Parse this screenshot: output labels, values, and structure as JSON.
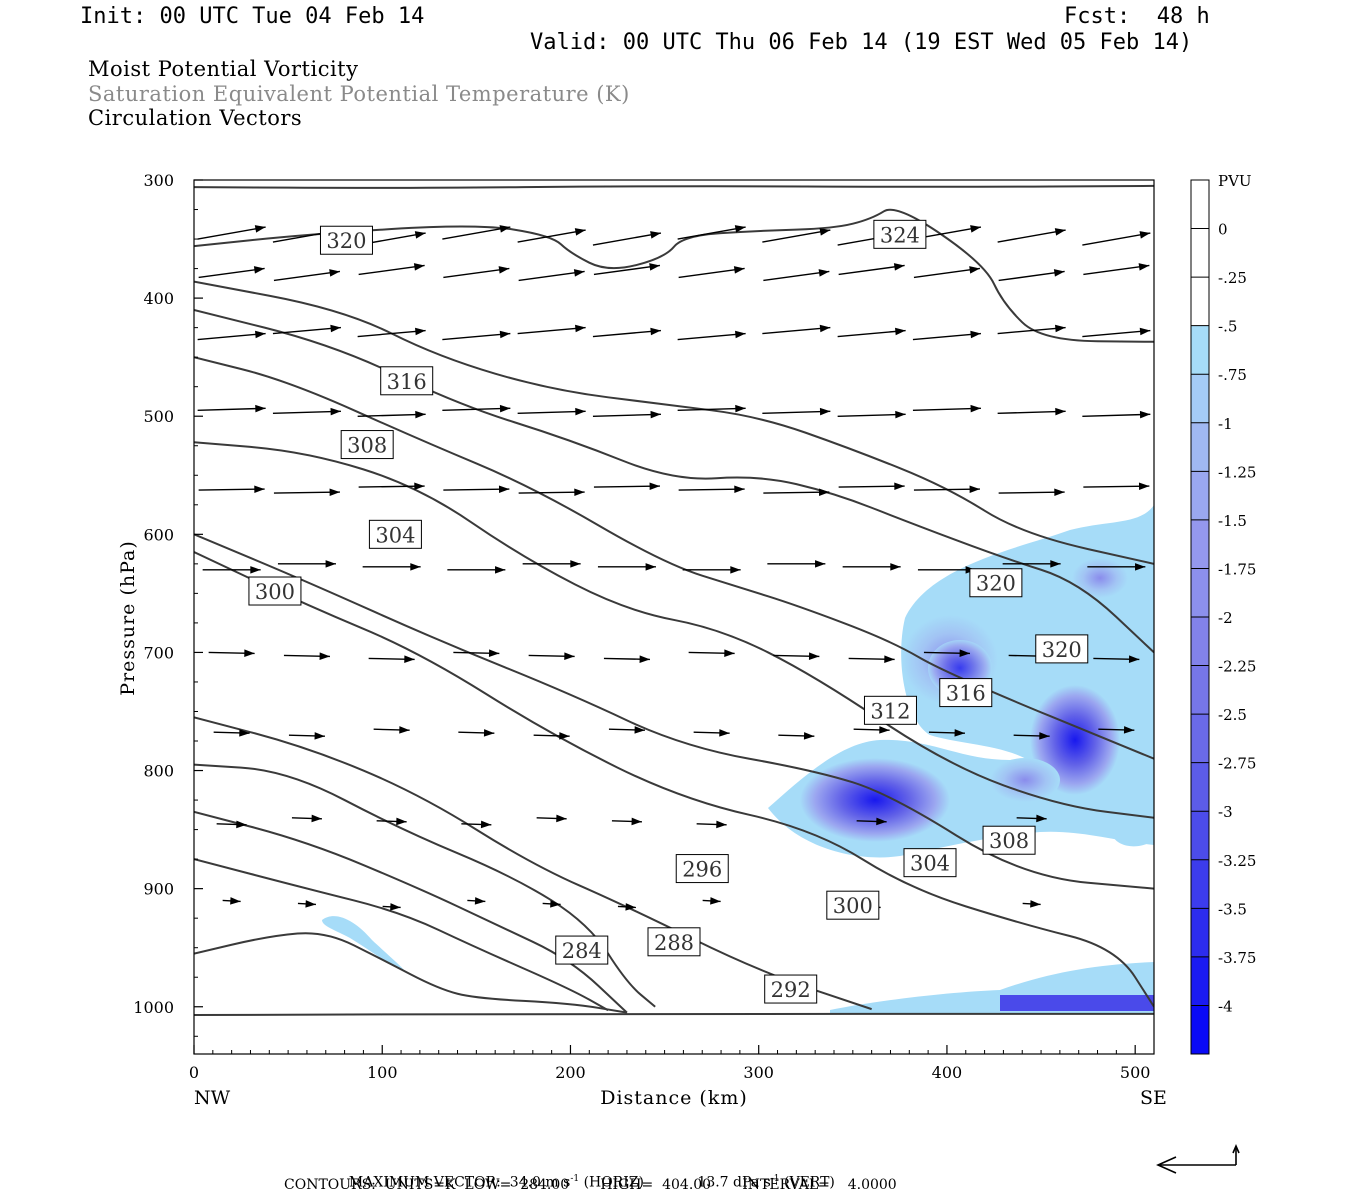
{
  "header": {
    "init": "Init: 00 UTC Tue 04 Feb 14",
    "fcst": "Fcst:  48 h",
    "valid": "Valid: 00 UTC Thu 06 Feb 14 (19 EST Wed 05 Feb 14)",
    "line1": "Moist Potential Vorticity",
    "line2": "Saturation Equivalent Potential Temperature (K)",
    "line3": "Circulation Vectors"
  },
  "footer": {
    "max_vector_label": "MAXIMUM VECTOR:",
    "horiz_value": "34.0 m s",
    "horiz_unit": "(HORIZ)",
    "vert_value": "13.7 dPa s",
    "vert_unit": "(VERT)",
    "contours_line": "CONTOURS:  UNITS=K  LOW=  284.00       HIGH=  404.00       INTERVAL=    4.0000"
  },
  "chart_data": {
    "type": "cross-section",
    "xlabel": "Distance (km)",
    "ylabel": "Pressure (hPa)",
    "x_end_labels": [
      "NW",
      "SE"
    ],
    "xlim": [
      0,
      510
    ],
    "ylim": [
      300,
      1040
    ],
    "x_ticks": [
      0,
      100,
      200,
      300,
      400,
      500
    ],
    "y_ticks": [
      300,
      400,
      500,
      600,
      700,
      800,
      900,
      1000
    ],
    "colorbar": {
      "unit": "PVU",
      "labels": [
        "0",
        "-.25",
        "-.5",
        "-.75",
        "-1",
        "-1.25",
        "-1.5",
        "-1.75",
        "-2",
        "-2.25",
        "-2.5",
        "-2.75",
        "-3",
        "-3.25",
        "-3.5",
        "-3.75",
        "-4"
      ],
      "colors": [
        "#ffffff",
        "#ffffff",
        "#a6dcf8",
        "#a4cbf6",
        "#a0b8f2",
        "#9aa8f0",
        "#9498ee",
        "#8c90ec",
        "#8282ea",
        "#7676e8",
        "#6a6ae8",
        "#5c5ce8",
        "#4c4cea",
        "#3c3cec",
        "#2c2cee",
        "#1a1af2",
        "#0a0af6"
      ]
    },
    "contour_labels": [
      {
        "value": "320",
        "x": 81,
        "p": 351
      },
      {
        "value": "324",
        "x": 375,
        "p": 346
      },
      {
        "value": "316",
        "x": 113,
        "p": 470
      },
      {
        "value": "308",
        "x": 92,
        "p": 524
      },
      {
        "value": "304",
        "x": 107,
        "p": 600
      },
      {
        "value": "300",
        "x": 43,
        "p": 648
      },
      {
        "value": "320",
        "x": 426,
        "p": 641
      },
      {
        "value": "320",
        "x": 461,
        "p": 697
      },
      {
        "value": "316",
        "x": 410,
        "p": 734
      },
      {
        "value": "312",
        "x": 370,
        "p": 749
      },
      {
        "value": "308",
        "x": 433,
        "p": 859
      },
      {
        "value": "304",
        "x": 391,
        "p": 878
      },
      {
        "value": "296",
        "x": 270,
        "p": 883
      },
      {
        "value": "300",
        "x": 350,
        "p": 914
      },
      {
        "value": "288",
        "x": 255,
        "p": 945
      },
      {
        "value": "284",
        "x": 206,
        "p": 952
      },
      {
        "value": "292",
        "x": 317,
        "p": 985
      }
    ],
    "contours": [
      [
        [
          0,
          306
        ],
        [
          100,
          307
        ],
        [
          250,
          305
        ],
        [
          400,
          306
        ],
        [
          510,
          305
        ]
      ],
      [
        [
          0,
          356
        ],
        [
          60,
          346
        ],
        [
          150,
          337
        ],
        [
          190,
          347
        ],
        [
          200,
          362
        ],
        [
          220,
          378
        ],
        [
          250,
          366
        ],
        [
          260,
          347
        ],
        [
          300,
          343
        ],
        [
          340,
          341
        ],
        [
          360,
          333
        ],
        [
          373,
          320
        ],
        [
          420,
          371
        ],
        [
          430,
          405
        ],
        [
          450,
          436
        ],
        [
          510,
          437
        ]
      ],
      [
        [
          0,
          386
        ],
        [
          80,
          410
        ],
        [
          130,
          450
        ],
        [
          190,
          478
        ],
        [
          250,
          490
        ],
        [
          300,
          500
        ],
        [
          350,
          528
        ],
        [
          400,
          560
        ],
        [
          440,
          600
        ],
        [
          510,
          625
        ]
      ],
      [
        [
          0,
          410
        ],
        [
          75,
          440
        ],
        [
          140,
          490
        ],
        [
          200,
          520
        ],
        [
          255,
          555
        ],
        [
          300,
          550
        ],
        [
          340,
          565
        ],
        [
          380,
          590
        ],
        [
          430,
          620
        ],
        [
          470,
          640
        ],
        [
          510,
          700
        ]
      ],
      [
        [
          0,
          450
        ],
        [
          50,
          470
        ],
        [
          120,
          520
        ],
        [
          180,
          560
        ],
        [
          250,
          625
        ],
        [
          290,
          645
        ],
        [
          320,
          660
        ],
        [
          370,
          690
        ],
        [
          400,
          718
        ],
        [
          510,
          790
        ]
      ],
      [
        [
          0,
          522
        ],
        [
          60,
          530
        ],
        [
          120,
          560
        ],
        [
          175,
          620
        ],
        [
          230,
          665
        ],
        [
          280,
          680
        ],
        [
          330,
          720
        ],
        [
          400,
          795
        ],
        [
          460,
          830
        ],
        [
          510,
          840
        ]
      ],
      [
        [
          0,
          600
        ],
        [
          60,
          640
        ],
        [
          130,
          690
        ],
        [
          200,
          735
        ],
        [
          260,
          780
        ],
        [
          330,
          800
        ],
        [
          370,
          820
        ],
        [
          440,
          890
        ],
        [
          510,
          900
        ]
      ],
      [
        [
          0,
          615
        ],
        [
          60,
          660
        ],
        [
          120,
          700
        ],
        [
          190,
          770
        ],
        [
          260,
          825
        ],
        [
          330,
          850
        ],
        [
          380,
          900
        ],
        [
          440,
          930
        ],
        [
          490,
          950
        ],
        [
          510,
          1000
        ]
      ],
      [
        [
          0,
          755
        ],
        [
          60,
          780
        ],
        [
          120,
          820
        ],
        [
          180,
          880
        ],
        [
          230,
          915
        ],
        [
          300,
          970
        ],
        [
          360,
          1002
        ]
      ],
      [
        [
          0,
          795
        ],
        [
          50,
          800
        ],
        [
          110,
          850
        ],
        [
          170,
          890
        ],
        [
          210,
          930
        ],
        [
          230,
          980
        ],
        [
          245,
          1000
        ]
      ],
      [
        [
          0,
          835
        ],
        [
          60,
          860
        ],
        [
          120,
          900
        ],
        [
          160,
          930
        ],
        [
          200,
          960
        ],
        [
          230,
          1005
        ]
      ],
      [
        [
          0,
          875
        ],
        [
          60,
          900
        ],
        [
          110,
          920
        ],
        [
          150,
          950
        ],
        [
          200,
          985
        ],
        [
          220,
          1003
        ]
      ],
      [
        [
          0,
          955
        ],
        [
          40,
          940
        ],
        [
          70,
          936
        ],
        [
          100,
          960
        ],
        [
          130,
          985
        ],
        [
          150,
          993
        ],
        [
          200,
          997
        ],
        [
          230,
          1005
        ]
      ],
      [
        [
          0,
          1007
        ],
        [
          200,
          1006
        ],
        [
          510,
          1006
        ]
      ]
    ]
  }
}
